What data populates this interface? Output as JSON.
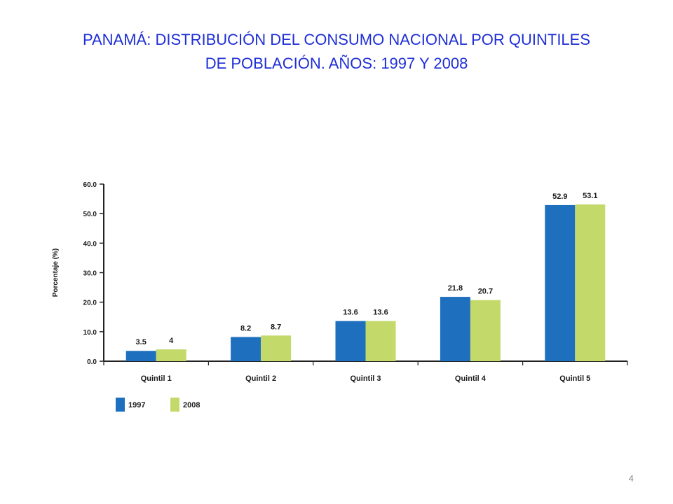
{
  "slide": {
    "title_line1": "PANAMÁ: DISTRIBUCIÓN DEL CONSUMO NACIONAL POR QUINTILES",
    "title_line2": "DE POBLACIÓN. AÑOS: 1997 Y 2008",
    "page_number": "4"
  },
  "chart_data": {
    "type": "bar",
    "categories": [
      "Quintil 1",
      "Quintil 2",
      "Quintil 3",
      "Quintil 4",
      "Quintil 5"
    ],
    "series": [
      {
        "name": "1997",
        "values": [
          3.5,
          8.2,
          13.6,
          21.8,
          52.9
        ],
        "labels": [
          "3.5",
          "8.2",
          "13.6",
          "21.8",
          "52.9"
        ],
        "color": "#1f6fbf"
      },
      {
        "name": "2008",
        "values": [
          4,
          8.7,
          13.6,
          20.7,
          53.1
        ],
        "labels": [
          "4",
          "8.7",
          "13.6",
          "20.7",
          "53.1"
        ],
        "color": "#c3d96a"
      }
    ],
    "ylabel": "Porcentaje (%)",
    "ylim": [
      0,
      60
    ],
    "yticks": [
      "0.0",
      "10.0",
      "20.0",
      "30.0",
      "40.0",
      "50.0",
      "60.0"
    ],
    "grid": false,
    "legend_position": "bottom-left"
  }
}
